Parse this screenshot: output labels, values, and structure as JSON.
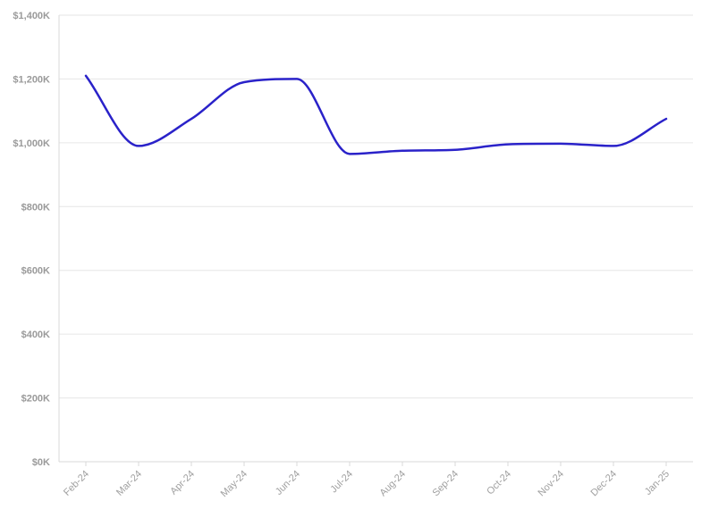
{
  "chart_data": {
    "type": "line",
    "title": "",
    "xlabel": "",
    "ylabel": "",
    "categories": [
      "Feb-24",
      "Mar-24",
      "Apr-24",
      "May-24",
      "Jun-24",
      "Jul-24",
      "Aug-24",
      "Sep-24",
      "Oct-24",
      "Nov-24",
      "Dec-24",
      "Jan-25"
    ],
    "series": [
      {
        "color": "#2a22c9",
        "values": [
          1210000,
          990000,
          1075000,
          1190000,
          1200000,
          965000,
          975000,
          978000,
          995000,
          997000,
          990000,
          1075000
        ]
      }
    ],
    "ylim": [
      0,
      1400000
    ],
    "yticks": [
      0,
      200000,
      400000,
      600000,
      800000,
      1000000,
      1200000,
      1400000
    ],
    "ytick_labels": [
      "$0K",
      "$200K",
      "$400K",
      "$600K",
      "$800K",
      "$1,000K",
      "$1,200K",
      "$1,400K"
    ],
    "grid": true,
    "legend": "none",
    "curve": "smooth"
  }
}
